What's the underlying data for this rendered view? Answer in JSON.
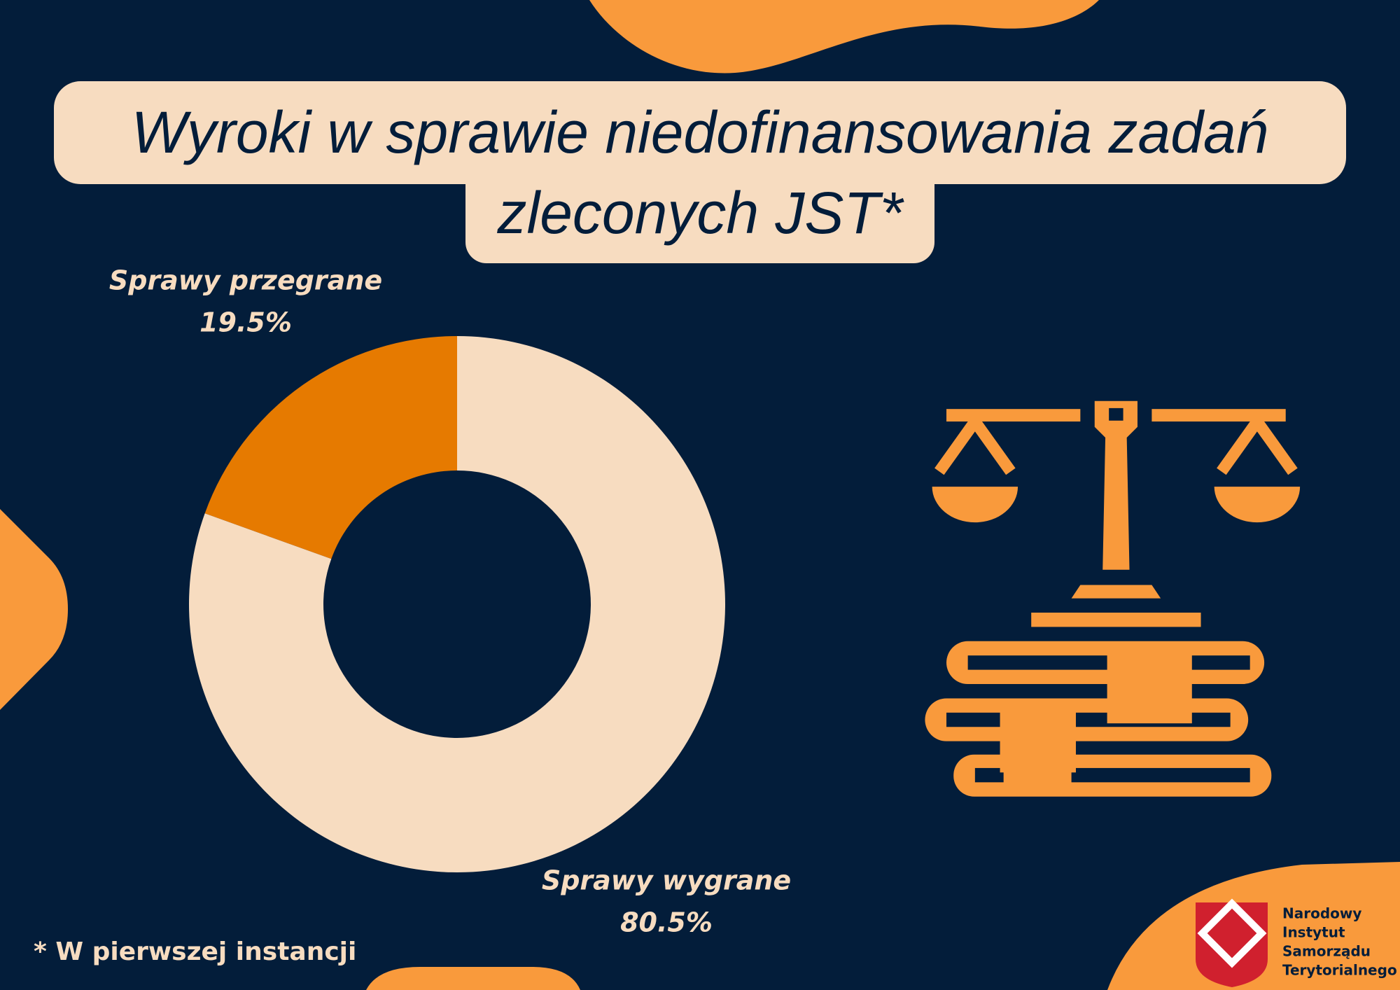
{
  "chart_data": {
    "type": "donut",
    "title": "Wyroki w sprawie niedofinansowania zadań zleconych JST*",
    "categories": [
      "Sprawy przegrane",
      "Sprawy wygrane"
    ],
    "values": [
      19.5,
      80.5
    ],
    "value_labels": [
      "19.5%",
      "80.5%"
    ],
    "colors": [
      "#e67a00",
      "#f7dcc0"
    ],
    "footnote": "* W pierwszej  instancji"
  },
  "logo": {
    "lines": [
      "Narodowy",
      "Instytut",
      "Samorządu",
      "Terytorialnego"
    ]
  }
}
